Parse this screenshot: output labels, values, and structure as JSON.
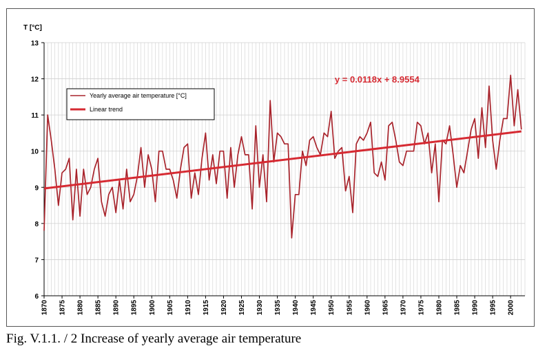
{
  "caption": "Fig. V.1.1. / 2  Increase of yearly average air temperature",
  "colors": {
    "series": "#a8232b",
    "trend": "#d62a32",
    "equation": "#d62a32",
    "grid": "#cfcfcf",
    "axis": "#000000"
  },
  "chart_data": {
    "type": "line",
    "ylabel": "T [°C]",
    "xlabel": "",
    "xlim": [
      1870,
      2004
    ],
    "ylim": [
      6,
      13
    ],
    "y_ticks": [
      6,
      7,
      8,
      9,
      10,
      11,
      12,
      13
    ],
    "x_ticks": [
      1870,
      1875,
      1880,
      1885,
      1890,
      1895,
      1900,
      1905,
      1910,
      1915,
      1920,
      1925,
      1930,
      1935,
      1940,
      1945,
      1950,
      1955,
      1960,
      1965,
      1970,
      1975,
      1980,
      1985,
      1990,
      1995,
      2000
    ],
    "grid": "vertical and horizontal",
    "legend_position": "upper-left",
    "series": [
      {
        "name": "Yearly average air temperature [°C]",
        "x": [
          1870,
          1871,
          1872,
          1873,
          1874,
          1875,
          1876,
          1877,
          1878,
          1879,
          1880,
          1881,
          1882,
          1883,
          1884,
          1885,
          1886,
          1887,
          1888,
          1889,
          1890,
          1891,
          1892,
          1893,
          1894,
          1895,
          1896,
          1897,
          1898,
          1899,
          1900,
          1901,
          1902,
          1903,
          1904,
          1905,
          1906,
          1907,
          1908,
          1909,
          1910,
          1911,
          1912,
          1913,
          1914,
          1915,
          1916,
          1917,
          1918,
          1919,
          1920,
          1921,
          1922,
          1923,
          1924,
          1925,
          1926,
          1927,
          1928,
          1929,
          1930,
          1931,
          1932,
          1933,
          1934,
          1935,
          1936,
          1937,
          1938,
          1939,
          1940,
          1941,
          1942,
          1943,
          1944,
          1945,
          1946,
          1947,
          1948,
          1949,
          1950,
          1951,
          1952,
          1953,
          1954,
          1955,
          1956,
          1957,
          1958,
          1959,
          1960,
          1961,
          1962,
          1963,
          1964,
          1965,
          1966,
          1967,
          1968,
          1969,
          1970,
          1971,
          1972,
          1973,
          1974,
          1975,
          1976,
          1977,
          1978,
          1979,
          1980,
          1981,
          1982,
          1983,
          1984,
          1985,
          1986,
          1987,
          1988,
          1989,
          1990,
          1991,
          1992,
          1993,
          1994,
          1995,
          1996,
          1997,
          1998,
          1999,
          2000,
          2001,
          2002,
          2003
        ],
        "values": [
          7.8,
          11.0,
          10.3,
          9.5,
          8.5,
          9.4,
          9.5,
          9.8,
          8.1,
          9.5,
          8.2,
          9.5,
          8.8,
          9.0,
          9.5,
          9.8,
          8.6,
          8.2,
          8.8,
          9.0,
          8.3,
          9.2,
          8.4,
          9.5,
          8.6,
          8.8,
          9.3,
          10.1,
          9.0,
          9.9,
          9.5,
          8.6,
          10.0,
          10.0,
          9.5,
          9.5,
          9.2,
          8.7,
          9.5,
          10.1,
          10.2,
          8.7,
          9.4,
          8.8,
          9.8,
          10.5,
          9.2,
          9.9,
          9.1,
          10.0,
          10.0,
          8.7,
          10.1,
          9.0,
          9.9,
          10.4,
          9.9,
          9.9,
          8.4,
          10.7,
          9.0,
          9.9,
          8.6,
          11.4,
          9.7,
          10.5,
          10.4,
          10.2,
          10.2,
          7.6,
          8.8,
          8.8,
          10.0,
          9.6,
          10.3,
          10.4,
          10.1,
          9.9,
          10.5,
          10.4,
          11.1,
          9.8,
          10.0,
          10.1,
          8.9,
          9.3,
          8.3,
          10.2,
          10.4,
          10.3,
          10.5,
          10.8,
          9.4,
          9.3,
          9.7,
          9.2,
          10.7,
          10.8,
          10.3,
          9.7,
          9.6,
          10.0,
          10.0,
          10.0,
          10.8,
          10.7,
          10.2,
          10.5,
          9.4,
          10.2,
          8.6,
          10.3,
          10.2,
          10.7,
          9.9,
          9.0,
          9.6,
          9.4,
          10.0,
          10.6,
          10.9,
          9.8,
          11.2,
          10.1,
          11.8,
          10.3,
          9.5,
          10.3,
          10.9,
          10.9,
          12.1,
          10.7,
          11.7,
          10.6
        ]
      },
      {
        "name": "Linear trend",
        "x": [
          1870,
          2003
        ],
        "values": [
          8.967,
          10.546
        ]
      }
    ],
    "annotations": [
      {
        "text": "y = 0.0118x + 8.9554",
        "x": 1951,
        "y": 11.9
      }
    ]
  }
}
